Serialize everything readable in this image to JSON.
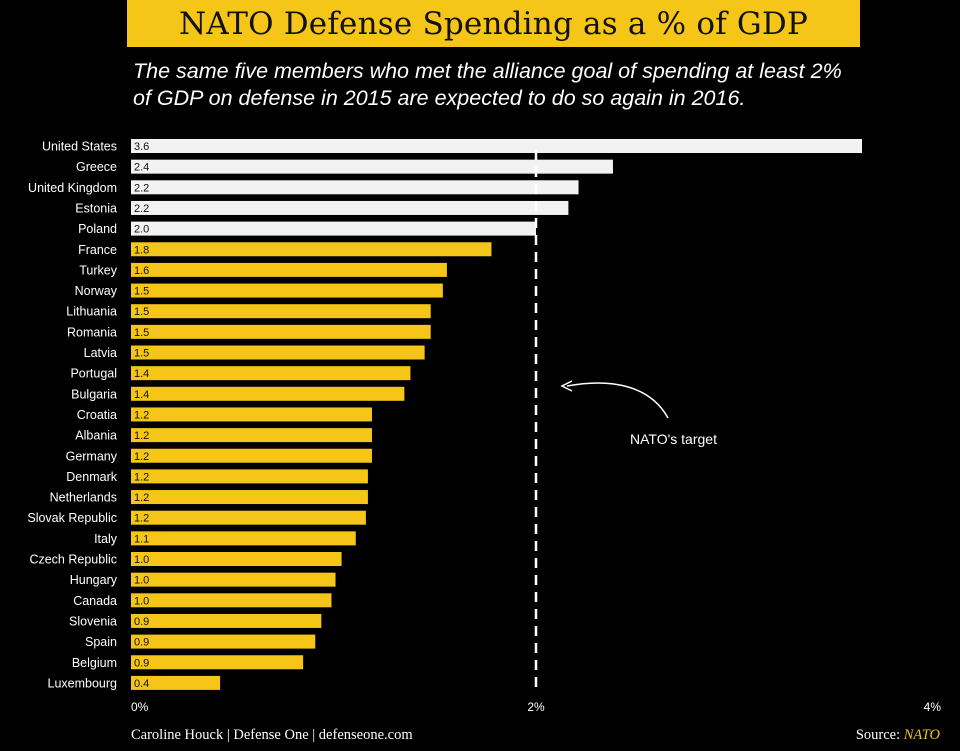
{
  "chart_data": {
    "type": "bar",
    "orientation": "horizontal",
    "title": "NATO Defense Spending as a % of GDP",
    "subtitle": "The same five members who met the alliance goal of spending at least 2% of GDP on defense in 2015 are expected to do so again in 2016.",
    "categories": [
      "United States",
      "Greece",
      "United Kingdom",
      "Estonia",
      "Poland",
      "France",
      "Turkey",
      "Norway",
      "Lithuania",
      "Romania",
      "Latvia",
      "Portugal",
      "Bulgaria",
      "Croatia",
      "Albania",
      "Germany",
      "Denmark",
      "Netherlands",
      "Slovak Republic",
      "Italy",
      "Czech Republic",
      "Hungary",
      "Canada",
      "Slovenia",
      "Spain",
      "Belgium",
      "Luxembourg"
    ],
    "values": [
      3.61,
      2.38,
      2.21,
      2.16,
      2.0,
      1.78,
      1.56,
      1.54,
      1.48,
      1.48,
      1.45,
      1.38,
      1.35,
      1.19,
      1.19,
      1.19,
      1.17,
      1.17,
      1.16,
      1.11,
      1.04,
      1.01,
      0.99,
      0.94,
      0.91,
      0.85,
      0.44
    ],
    "value_labels": [
      "3.6",
      "2.4",
      "2.2",
      "2.2",
      "2.0",
      "1.8",
      "1.6",
      "1.5",
      "1.5",
      "1.5",
      "1.5",
      "1.4",
      "1.4",
      "1.2",
      "1.2",
      "1.2",
      "1.2",
      "1.2",
      "1.2",
      "1.1",
      "1.0",
      "1.0",
      "1.0",
      "0.9",
      "0.9",
      "0.9",
      "0.4"
    ],
    "xlim": [
      0,
      4
    ],
    "x_ticks": [
      "0%",
      "2%",
      "4%"
    ],
    "x_tick_values": [
      0,
      2,
      4
    ],
    "target_value": 2,
    "target_label": "NATO's target",
    "met_target_count": 5,
    "colors": {
      "met_target": "#f2f2f2",
      "below_target": "#f5c518",
      "background": "#000000"
    },
    "grid": false,
    "legend": "none"
  },
  "footer": {
    "credit": "Caroline Houck | Defense One | defenseone.com",
    "source_prefix": "Source: ",
    "source_name": "NATO"
  }
}
